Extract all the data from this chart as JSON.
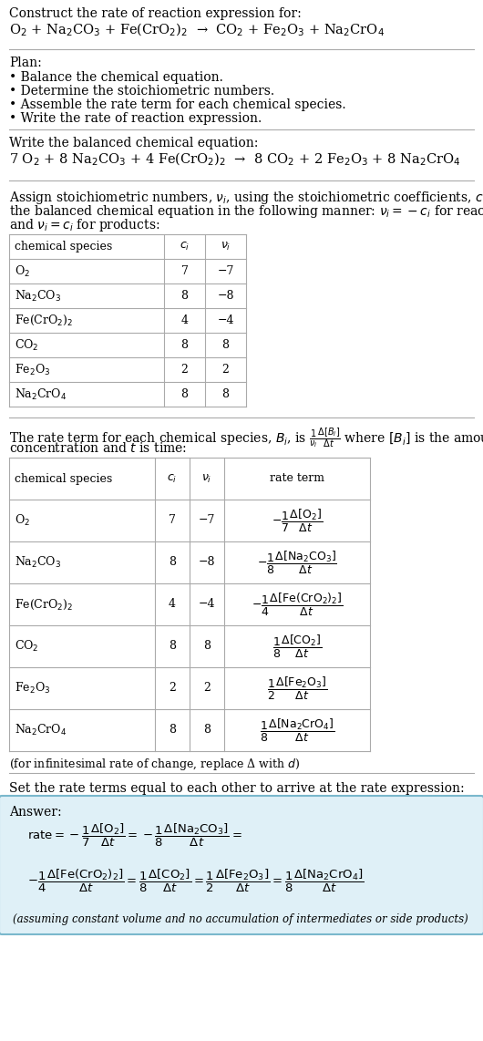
{
  "bg_color": "#ffffff",
  "text_color": "#000000",
  "title_line1": "Construct the rate of reaction expression for:",
  "reaction_unbalanced": "O$_2$ + Na$_2$CO$_3$ + Fe(CrO$_2$)$_2$  →  CO$_2$ + Fe$_2$O$_3$ + Na$_2$CrO$_4$",
  "plan_header": "Plan:",
  "plan_items": [
    "• Balance the chemical equation.",
    "• Determine the stoichiometric numbers.",
    "• Assemble the rate term for each chemical species.",
    "• Write the rate of reaction expression."
  ],
  "balanced_header": "Write the balanced chemical equation:",
  "balanced_eq": "7 O$_2$ + 8 Na$_2$CO$_3$ + 4 Fe(CrO$_2$)$_2$  →  8 CO$_2$ + 2 Fe$_2$O$_3$ + 8 Na$_2$CrO$_4$",
  "table1_headers": [
    "chemical species",
    "$c_i$",
    "$\\nu_i$"
  ],
  "table1_rows": [
    [
      "O$_2$",
      "7",
      "−7"
    ],
    [
      "Na$_2$CO$_3$",
      "8",
      "−8"
    ],
    [
      "Fe(CrO$_2$)$_2$",
      "4",
      "−4"
    ],
    [
      "CO$_2$",
      "8",
      "8"
    ],
    [
      "Fe$_2$O$_3$",
      "2",
      "2"
    ],
    [
      "Na$_2$CrO$_4$",
      "8",
      "8"
    ]
  ],
  "table2_headers": [
    "chemical species",
    "$c_i$",
    "$\\nu_i$",
    "rate term"
  ],
  "table2_rows": [
    [
      "O$_2$",
      "7",
      "−7",
      "$-\\dfrac{1}{7}\\dfrac{\\Delta[\\mathrm{O_2}]}{\\Delta t}$"
    ],
    [
      "Na$_2$CO$_3$",
      "8",
      "−8",
      "$-\\dfrac{1}{8}\\dfrac{\\Delta[\\mathrm{Na_2CO_3}]}{\\Delta t}$"
    ],
    [
      "Fe(CrO$_2$)$_2$",
      "4",
      "−4",
      "$-\\dfrac{1}{4}\\dfrac{\\Delta[\\mathrm{Fe(CrO_2)_2}]}{\\Delta t}$"
    ],
    [
      "CO$_2$",
      "8",
      "8",
      "$\\dfrac{1}{8}\\dfrac{\\Delta[\\mathrm{CO_2}]}{\\Delta t}$"
    ],
    [
      "Fe$_2$O$_3$",
      "2",
      "2",
      "$\\dfrac{1}{2}\\dfrac{\\Delta[\\mathrm{Fe_2O_3}]}{\\Delta t}$"
    ],
    [
      "Na$_2$CrO$_4$",
      "8",
      "8",
      "$\\dfrac{1}{8}\\dfrac{\\Delta[\\mathrm{Na_2CrO_4}]}{\\Delta t}$"
    ]
  ],
  "infinitesimal_note": "(for infinitesimal rate of change, replace Δ with $d$)",
  "set_rate_header": "Set the rate terms equal to each other to arrive at the rate expression:",
  "answer_box_color": "#dff0f7",
  "answer_box_border": "#7ab8cc",
  "answer_label": "Answer:",
  "answer_line1": "$\\mathrm{rate} = -\\dfrac{1}{7}\\dfrac{\\Delta[\\mathrm{O_2}]}{\\Delta t} = -\\dfrac{1}{8}\\dfrac{\\Delta[\\mathrm{Na_2CO_3}]}{\\Delta t} =$",
  "answer_line2": "$-\\dfrac{1}{4}\\dfrac{\\Delta[\\mathrm{Fe(CrO_2)_2}]}{\\Delta t} = \\dfrac{1}{8}\\dfrac{\\Delta[\\mathrm{CO_2}]}{\\Delta t} = \\dfrac{1}{2}\\dfrac{\\Delta[\\mathrm{Fe_2O_3}]}{\\Delta t} = \\dfrac{1}{8}\\dfrac{\\Delta[\\mathrm{Na_2CrO_4}]}{\\Delta t}$",
  "answer_note": "(assuming constant volume and no accumulation of intermediates or side products)"
}
